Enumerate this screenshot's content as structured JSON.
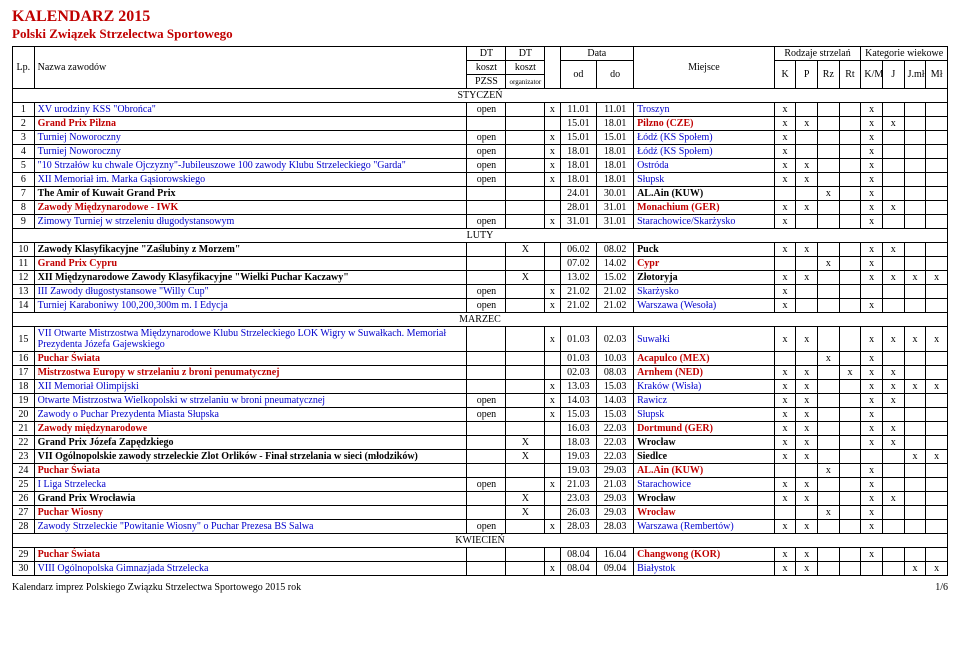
{
  "header": {
    "title1": "KALENDARZ 2015",
    "title2": "Polski Związek Strzelectwa Sportowego",
    "lp": "Lp.",
    "name": "Nazwa zawodów",
    "dt": "DT",
    "koszt": "koszt",
    "pzss": "PZSS",
    "org": "organizator",
    "data": "Data",
    "od": "od",
    "do": "do",
    "miejsce": "Miejsce",
    "rodzaje": "Rodzaje strzelań",
    "kategorie": "Kategorie wiekowe",
    "K": "K",
    "P": "P",
    "Rz": "Rz",
    "Rt": "Rt",
    "KM": "K/M",
    "J": "J",
    "Jml": "J.mł",
    "Ml": "Mł"
  },
  "months": {
    "jan": "STYCZEŃ",
    "feb": "LUTY",
    "mar": "MARZEC",
    "apr": "KWIECIEŃ"
  },
  "rows": [
    {
      "lp": "1",
      "name": "XV urodziny KSS \"Obrońca\"",
      "cls": "blue",
      "k1": "open",
      "k2": "",
      "x": "x",
      "od": "11.01",
      "do": "11.01",
      "place": "Troszyn",
      "K": "x",
      "P": "",
      "Rz": "",
      "Rt": "",
      "KM": "x",
      "J": "",
      "Jml": "",
      "Ml": ""
    },
    {
      "lp": "2",
      "name": "Grand Prix Pilzna",
      "cls": "red bold",
      "k1": "",
      "k2": "",
      "x": "",
      "od": "15.01",
      "do": "18.01",
      "place": "Pilzno (CZE)",
      "K": "x",
      "P": "x",
      "Rz": "",
      "Rt": "",
      "KM": "x",
      "J": "x",
      "Jml": "",
      "Ml": ""
    },
    {
      "lp": "3",
      "name": "Turniej Noworoczny",
      "cls": "blue",
      "k1": "open",
      "k2": "",
      "x": "x",
      "od": "15.01",
      "do": "15.01",
      "place": "Łódź (KS Społem)",
      "K": "x",
      "P": "",
      "Rz": "",
      "Rt": "",
      "KM": "x",
      "J": "",
      "Jml": "",
      "Ml": ""
    },
    {
      "lp": "4",
      "name": "Turniej Noworoczny",
      "cls": "blue",
      "k1": "open",
      "k2": "",
      "x": "x",
      "od": "18.01",
      "do": "18.01",
      "place": "Łódź (KS Społem)",
      "K": "x",
      "P": "",
      "Rz": "",
      "Rt": "",
      "KM": "x",
      "J": "",
      "Jml": "",
      "Ml": ""
    },
    {
      "lp": "5",
      "name": "\"10 Strzałów ku chwale Ojczyzny\"-Jubileuszowe 100 zawody Klubu Strzeleckiego \"Garda\"",
      "cls": "blue",
      "k1": "open",
      "k2": "",
      "x": "x",
      "od": "18.01",
      "do": "18.01",
      "place": "Ostróda",
      "K": "x",
      "P": "x",
      "Rz": "",
      "Rt": "",
      "KM": "x",
      "J": "",
      "Jml": "",
      "Ml": ""
    },
    {
      "lp": "6",
      "name": "XII Memoriał im. Marka Gąsiorowskiego",
      "cls": "blue",
      "k1": "open",
      "k2": "",
      "x": "x",
      "od": "18.01",
      "do": "18.01",
      "place": "Słupsk",
      "K": "x",
      "P": "x",
      "Rz": "",
      "Rt": "",
      "KM": "x",
      "J": "",
      "Jml": "",
      "Ml": ""
    },
    {
      "lp": "7",
      "name": "The Amir of Kuwait Grand Prix",
      "cls": "bold",
      "k1": "",
      "k2": "",
      "x": "",
      "od": "24.01",
      "do": "30.01",
      "place": "AL.Ain  (KUW)",
      "K": "",
      "P": "",
      "Rz": "x",
      "Rt": "",
      "KM": "x",
      "J": "",
      "Jml": "",
      "Ml": ""
    },
    {
      "lp": "8",
      "name": "Zawody Międzynarodowe - IWK",
      "cls": "red bold",
      "k1": "",
      "k2": "",
      "x": "",
      "od": "28.01",
      "do": "31.01",
      "place": "Monachium (GER)",
      "K": "x",
      "P": "x",
      "Rz": "",
      "Rt": "",
      "KM": "x",
      "J": "x",
      "Jml": "",
      "Ml": ""
    },
    {
      "lp": "9",
      "name": "Zimowy Turniej w strzeleniu długodystansowym",
      "cls": "blue",
      "k1": "open",
      "k2": "",
      "x": "x",
      "od": "31.01",
      "do": "31.01",
      "place": "Starachowice/Skarżysko",
      "K": "x",
      "P": "",
      "Rz": "",
      "Rt": "",
      "KM": "x",
      "J": "",
      "Jml": "",
      "Ml": ""
    }
  ],
  "rows_feb": [
    {
      "lp": "10",
      "name": "Zawody Klasyfikacyjne  \"Zaślubiny z Morzem\"",
      "cls": "bold",
      "k1": "",
      "k2": "X",
      "x": "",
      "od": "06.02",
      "do": "08.02",
      "place": "Puck",
      "K": "x",
      "P": "x",
      "Rz": "",
      "Rt": "",
      "KM": "x",
      "J": "x",
      "Jml": "",
      "Ml": ""
    },
    {
      "lp": "11",
      "name": "Grand Prix Cypru",
      "cls": "red bold",
      "k1": "",
      "k2": "",
      "x": "",
      "od": "07.02",
      "do": "14.02",
      "place": "Cypr",
      "K": "",
      "P": "",
      "Rz": "x",
      "Rt": "",
      "KM": "x",
      "J": "",
      "Jml": "",
      "Ml": ""
    },
    {
      "lp": "12",
      "name": "XII Międzynarodowe Zawody Klasyfikacyjne  \"Wielki Puchar Kaczawy\"",
      "cls": "bold",
      "k1": "",
      "k2": "X",
      "x": "",
      "od": "13.02",
      "do": "15.02",
      "place": "Złotoryja",
      "K": "x",
      "P": "x",
      "Rz": "",
      "Rt": "",
      "KM": "x",
      "J": "x",
      "Jml": "x",
      "Ml": "x"
    },
    {
      "lp": "13",
      "name": "III Zawody długostystansowe \"Willy Cup\"",
      "cls": "blue",
      "k1": "open",
      "k2": "",
      "x": "x",
      "od": "21.02",
      "do": "21.02",
      "place": "Skarżysko",
      "K": "x",
      "P": "",
      "Rz": "",
      "Rt": "",
      "KM": "",
      "J": "",
      "Jml": "",
      "Ml": ""
    },
    {
      "lp": "14",
      "name": "Turniej Karaboniwy 100,200,300m m. I Edycja",
      "cls": "blue",
      "k1": "open",
      "k2": "",
      "x": "x",
      "od": "21.02",
      "do": "21.02",
      "place": "Warszawa (Wesoła)",
      "K": "x",
      "P": "",
      "Rz": "",
      "Rt": "",
      "KM": "x",
      "J": "",
      "Jml": "",
      "Ml": ""
    }
  ],
  "rows_mar": [
    {
      "lp": "15",
      "name": "VII Otwarte Mistrzostwa Międzynarodowe Klubu Strzeleckiego LOK Wigry w Suwałkach. Memoriał Prezydenta Józefa Gajewskiego",
      "cls": "blue",
      "k1": "",
      "k2": "",
      "x": "x",
      "od": "01.03",
      "do": "02.03",
      "place": "Suwałki",
      "K": "x",
      "P": "x",
      "Rz": "",
      "Rt": "",
      "KM": "x",
      "J": "x",
      "Jml": "x",
      "Ml": "x"
    },
    {
      "lp": "16",
      "name": "Puchar Świata",
      "cls": "red bold",
      "k1": "",
      "k2": "",
      "x": "",
      "od": "01.03",
      "do": "10.03",
      "place": "Acapulco (MEX)",
      "K": "",
      "P": "",
      "Rz": "x",
      "Rt": "",
      "KM": "x",
      "J": "",
      "Jml": "",
      "Ml": ""
    },
    {
      "lp": "17",
      "name": "Mistrzostwa Europy w strzelaniu z broni penumatycznej",
      "cls": "red bold",
      "k1": "",
      "k2": "",
      "x": "",
      "od": "02.03",
      "do": "08.03",
      "place": "Arnhem (NED)",
      "K": "x",
      "P": "x",
      "Rz": "",
      "Rt": "x",
      "KM": "x",
      "J": "x",
      "Jml": "",
      "Ml": ""
    },
    {
      "lp": "18",
      "name": "XII Memoriał Olimpijski",
      "cls": "blue",
      "k1": "",
      "k2": "",
      "x": "x",
      "od": "13.03",
      "do": "15.03",
      "place": "Kraków (Wisła)",
      "K": "x",
      "P": "x",
      "Rz": "",
      "Rt": "",
      "KM": "x",
      "J": "x",
      "Jml": "x",
      "Ml": "x"
    },
    {
      "lp": "19",
      "name": "Otwarte Mistrzostwa Wielkopolski w strzelaniu w broni pneumatycznej",
      "cls": "blue",
      "k1": "open",
      "k2": "",
      "x": "x",
      "od": "14.03",
      "do": "14.03",
      "place": "Rawicz",
      "K": "x",
      "P": "x",
      "Rz": "",
      "Rt": "",
      "KM": "x",
      "J": "x",
      "Jml": "",
      "Ml": ""
    },
    {
      "lp": "20",
      "name": "Zawody o Puchar Prezydenta Miasta Słupska",
      "cls": "blue",
      "k1": "open",
      "k2": "",
      "x": "x",
      "od": "15.03",
      "do": "15.03",
      "place": "Słupsk",
      "K": "x",
      "P": "x",
      "Rz": "",
      "Rt": "",
      "KM": "x",
      "J": "",
      "Jml": "",
      "Ml": ""
    },
    {
      "lp": "21",
      "name": "Zawody międzynarodowe",
      "cls": "red bold",
      "k1": "",
      "k2": "",
      "x": "",
      "od": "16.03",
      "do": "22.03",
      "place": "Dortmund (GER)",
      "K": "x",
      "P": "x",
      "Rz": "",
      "Rt": "",
      "KM": "x",
      "J": "x",
      "Jml": "",
      "Ml": ""
    },
    {
      "lp": "22",
      "name": "Grand Prix Józefa Zapędzkiego",
      "cls": "bold",
      "k1": "",
      "k2": "X",
      "x": "",
      "od": "18.03",
      "do": "22.03",
      "place": "Wrocław",
      "K": "x",
      "P": "x",
      "Rz": "",
      "Rt": "",
      "KM": "x",
      "J": "x",
      "Jml": "",
      "Ml": ""
    },
    {
      "lp": "23",
      "name": "VII Ogólnopolskie zawody strzeleckie Zlot Orlików - Finał strzelania w sieci (młodzików)",
      "cls": "bold",
      "k1": "",
      "k2": "X",
      "x": "",
      "od": "19.03",
      "do": "22.03",
      "place": "Siedlce",
      "K": "x",
      "P": "x",
      "Rz": "",
      "Rt": "",
      "KM": "",
      "J": "",
      "Jml": "x",
      "Ml": "x"
    },
    {
      "lp": "24",
      "name": "Puchar Świata",
      "cls": "red bold",
      "k1": "",
      "k2": "",
      "x": "",
      "od": "19.03",
      "do": "29.03",
      "place": "AL.Ain (KUW)",
      "K": "",
      "P": "",
      "Rz": "x",
      "Rt": "",
      "KM": "x",
      "J": "",
      "Jml": "",
      "Ml": ""
    },
    {
      "lp": "25",
      "name": "I Liga Strzelecka",
      "cls": "blue",
      "k1": "open",
      "k2": "",
      "x": "x",
      "od": "21.03",
      "do": "21.03",
      "place": "Starachowice",
      "K": "x",
      "P": "x",
      "Rz": "",
      "Rt": "",
      "KM": "x",
      "J": "",
      "Jml": "",
      "Ml": ""
    },
    {
      "lp": "26",
      "name": "Grand Prix Wrocławia",
      "cls": "bold",
      "k1": "",
      "k2": "X",
      "x": "",
      "od": "23.03",
      "do": "29.03",
      "place": "Wrocław",
      "K": "x",
      "P": "x",
      "Rz": "",
      "Rt": "",
      "KM": "x",
      "J": "x",
      "Jml": "",
      "Ml": ""
    },
    {
      "lp": "27",
      "name": "Puchar Wiosny",
      "cls": "red bold",
      "k1": "",
      "k2": "X",
      "x": "",
      "od": "26.03",
      "do": "29.03",
      "place": "Wrocław",
      "K": "",
      "P": "",
      "Rz": "x",
      "Rt": "",
      "KM": "x",
      "J": "",
      "Jml": "",
      "Ml": ""
    },
    {
      "lp": "28",
      "name": "Zawody Strzeleckie \"Powitanie Wiosny\" o Puchar Prezesa BS Salwa",
      "cls": "blue",
      "k1": "open",
      "k2": "",
      "x": "x",
      "od": "28.03",
      "do": "28.03",
      "place": "Warszawa (Rembertów)",
      "K": "x",
      "P": "x",
      "Rz": "",
      "Rt": "",
      "KM": "x",
      "J": "",
      "Jml": "",
      "Ml": ""
    }
  ],
  "rows_apr": [
    {
      "lp": "29",
      "name": "Puchar Świata",
      "cls": "red bold",
      "k1": "",
      "k2": "",
      "x": "",
      "od": "08.04",
      "do": "16.04",
      "place": "Changwong (KOR)",
      "K": "x",
      "P": "x",
      "Rz": "",
      "Rt": "",
      "KM": "x",
      "J": "",
      "Jml": "",
      "Ml": ""
    },
    {
      "lp": "30",
      "name": "VIII Ogólnopolska Gimnazjada Strzelecka",
      "cls": "blue",
      "k1": "",
      "k2": "",
      "x": "x",
      "od": "08.04",
      "do": "09.04",
      "place": "Białystok",
      "K": "x",
      "P": "x",
      "Rz": "",
      "Rt": "",
      "KM": "",
      "J": "",
      "Jml": "x",
      "Ml": "x"
    }
  ],
  "footer": {
    "text": "Kalendarz imprez Polskiego Związku Strzelectwa Sportowego 2015 rok",
    "page": "1/6"
  },
  "style": {
    "red": "#c00000",
    "blue": "#0000cc",
    "border": "#000000",
    "bg": "#ffffff"
  }
}
